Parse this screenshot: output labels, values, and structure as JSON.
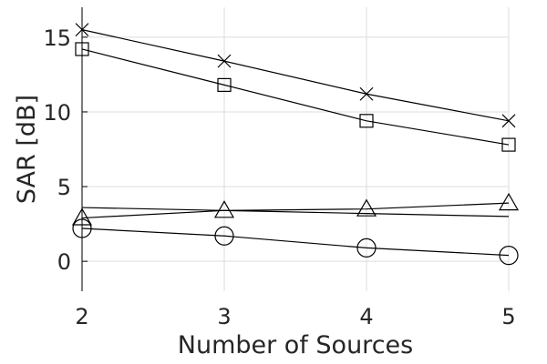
{
  "chart_data": {
    "type": "line",
    "xlabel": "Number of Sources",
    "ylabel": "SAR [dB]",
    "x": [
      2,
      3,
      4,
      5
    ],
    "xlim": [
      2,
      5
    ],
    "ylim": [
      -2,
      17
    ],
    "xticks": [
      2,
      3,
      4,
      5
    ],
    "yticks": [
      0,
      5,
      10,
      15
    ],
    "grid": true,
    "series": [
      {
        "marker": "x",
        "values": [
          15.5,
          13.4,
          11.2,
          9.4
        ]
      },
      {
        "marker": "square",
        "values": [
          14.2,
          11.8,
          9.4,
          7.8
        ]
      },
      {
        "marker": "none",
        "values": [
          3.6,
          3.4,
          3.2,
          3.0
        ]
      },
      {
        "marker": "triangle",
        "values": [
          2.9,
          3.4,
          3.5,
          3.9
        ]
      },
      {
        "marker": "circle",
        "values": [
          2.2,
          1.7,
          0.9,
          0.4
        ]
      }
    ],
    "colors": {
      "line": "#000000",
      "grid": "#dcdcdc",
      "text": "#262626"
    }
  }
}
